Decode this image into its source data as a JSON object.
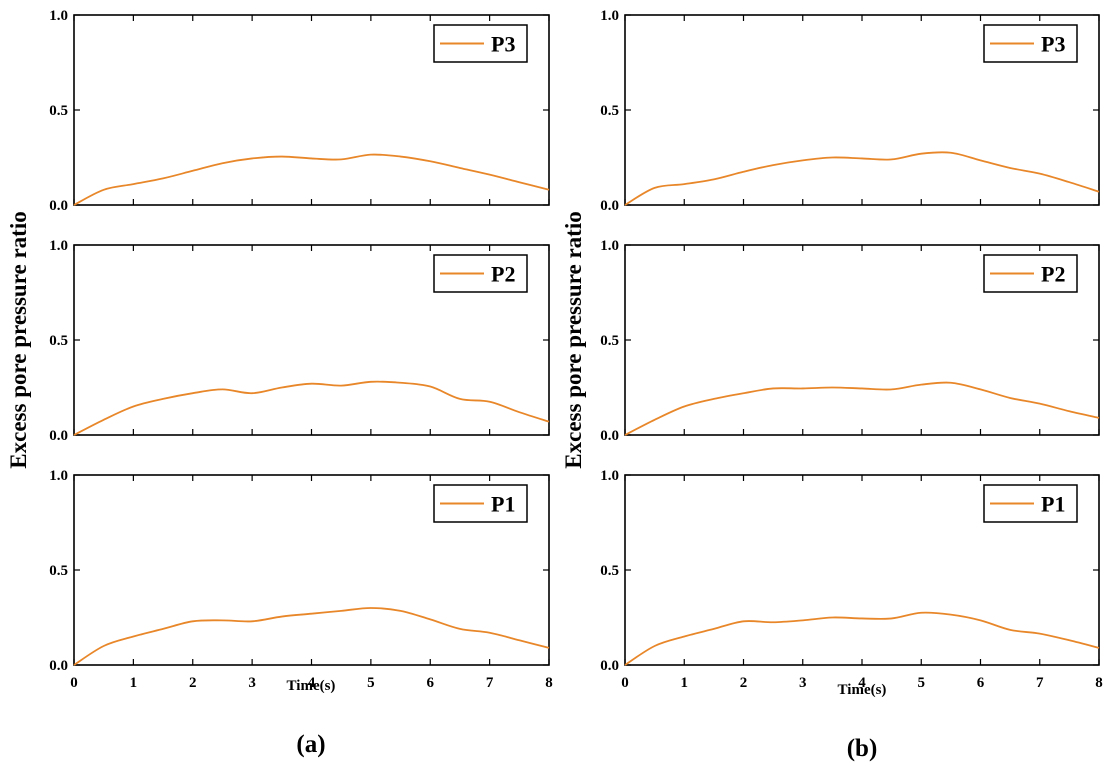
{
  "colors": {
    "series": "#E8872A"
  },
  "chart_data": [
    {
      "type": "line",
      "panel_label": "(a)",
      "ylabel": "Excess pore pressure ratio",
      "xlabel": "Time(s)",
      "xlim": [
        0,
        8
      ],
      "ylim": [
        0,
        1.0
      ],
      "x_ticks": [
        "0",
        "1",
        "2",
        "3",
        "4",
        "5",
        "6",
        "7",
        "8"
      ],
      "y_ticks": [
        "0.0",
        "0.5",
        "1.0"
      ],
      "subplots": [
        {
          "legend": "P3",
          "x": [
            0,
            0.5,
            1,
            1.5,
            2,
            2.5,
            3,
            3.5,
            4,
            4.5,
            5,
            5.5,
            6,
            6.5,
            7,
            7.5,
            8
          ],
          "y": [
            0.0,
            0.08,
            0.11,
            0.14,
            0.18,
            0.22,
            0.245,
            0.255,
            0.245,
            0.24,
            0.265,
            0.255,
            0.23,
            0.195,
            0.16,
            0.12,
            0.08
          ]
        },
        {
          "legend": "P2",
          "x": [
            0,
            0.5,
            1,
            1.5,
            2,
            2.5,
            3,
            3.5,
            4,
            4.5,
            5,
            5.5,
            6,
            6.5,
            7,
            7.5,
            8
          ],
          "y": [
            0.0,
            0.08,
            0.15,
            0.19,
            0.22,
            0.24,
            0.22,
            0.25,
            0.27,
            0.26,
            0.28,
            0.275,
            0.255,
            0.19,
            0.175,
            0.12,
            0.07
          ]
        },
        {
          "legend": "P1",
          "x": [
            0,
            0.5,
            1,
            1.5,
            2,
            2.5,
            3,
            3.5,
            4,
            4.5,
            5,
            5.5,
            6,
            6.5,
            7,
            7.5,
            8
          ],
          "y": [
            0.0,
            0.1,
            0.15,
            0.19,
            0.23,
            0.235,
            0.23,
            0.255,
            0.27,
            0.285,
            0.3,
            0.285,
            0.24,
            0.19,
            0.17,
            0.13,
            0.09
          ]
        }
      ]
    },
    {
      "type": "line",
      "panel_label": "(b)",
      "ylabel": "Excess pore pressure ratio",
      "xlabel": "Time(s)",
      "xlim": [
        0,
        8
      ],
      "ylim": [
        0,
        1.0
      ],
      "x_ticks": [
        "0",
        "1",
        "2",
        "3",
        "4",
        "5",
        "6",
        "7",
        "8"
      ],
      "y_ticks": [
        "0.0",
        "0.5",
        "1.0"
      ],
      "subplots": [
        {
          "legend": "P3",
          "x": [
            0,
            0.5,
            1,
            1.5,
            2,
            2.5,
            3,
            3.5,
            4,
            4.5,
            5,
            5.5,
            6,
            6.5,
            7,
            7.5,
            8
          ],
          "y": [
            0.0,
            0.09,
            0.11,
            0.135,
            0.175,
            0.21,
            0.235,
            0.25,
            0.245,
            0.24,
            0.27,
            0.275,
            0.235,
            0.195,
            0.165,
            0.12,
            0.07
          ]
        },
        {
          "legend": "P2",
          "x": [
            0,
            0.5,
            1,
            1.5,
            2,
            2.5,
            3,
            3.5,
            4,
            4.5,
            5,
            5.5,
            6,
            6.5,
            7,
            7.5,
            8
          ],
          "y": [
            0.0,
            0.08,
            0.15,
            0.19,
            0.22,
            0.245,
            0.245,
            0.25,
            0.245,
            0.24,
            0.265,
            0.275,
            0.24,
            0.195,
            0.165,
            0.125,
            0.09
          ]
        },
        {
          "legend": "P1",
          "x": [
            0,
            0.5,
            1,
            1.5,
            2,
            2.5,
            3,
            3.5,
            4,
            4.5,
            5,
            5.5,
            6,
            6.5,
            7,
            7.5,
            8
          ],
          "y": [
            0.0,
            0.1,
            0.15,
            0.19,
            0.23,
            0.225,
            0.235,
            0.25,
            0.245,
            0.245,
            0.275,
            0.265,
            0.235,
            0.185,
            0.165,
            0.13,
            0.09
          ]
        }
      ]
    }
  ]
}
